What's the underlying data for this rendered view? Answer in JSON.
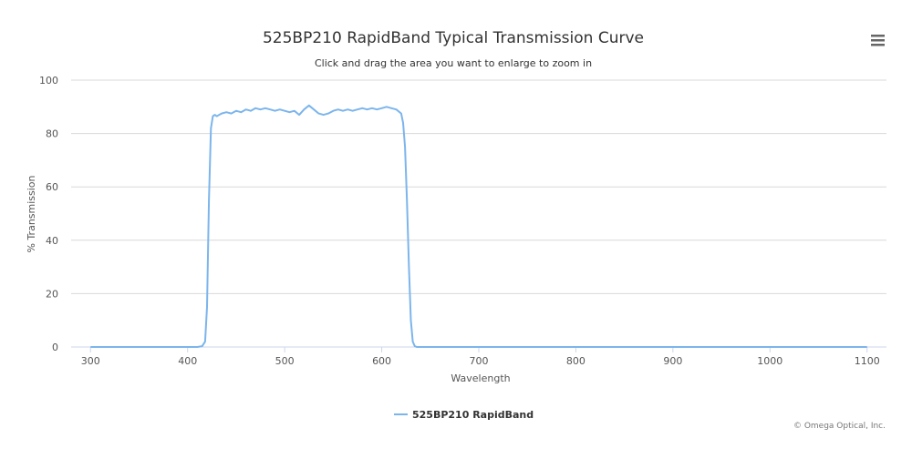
{
  "chart_data": {
    "type": "line",
    "title": "525BP210 RapidBand Typical Transmission Curve",
    "subtitle": "Click and drag the area you want to enlarge to zoom in",
    "xlabel": "Wavelength",
    "ylabel": "% Transmission",
    "xlim": [
      280,
      1120
    ],
    "ylim": [
      0,
      100
    ],
    "xticks": [
      300,
      400,
      500,
      600,
      700,
      800,
      900,
      1000,
      1100
    ],
    "yticks": [
      0,
      20,
      40,
      60,
      80,
      100
    ],
    "grid": true,
    "legend_position": "bottom-center",
    "series_color": "#7cb5ec",
    "series": [
      {
        "name": "525BP210 RapidBand",
        "x": [
          300,
          400,
          410,
          415,
          418,
          420,
          422,
          424,
          426,
          428,
          430,
          435,
          440,
          445,
          450,
          455,
          460,
          465,
          470,
          475,
          480,
          485,
          490,
          495,
          500,
          505,
          510,
          515,
          520,
          525,
          530,
          535,
          540,
          545,
          550,
          555,
          560,
          565,
          570,
          575,
          580,
          585,
          590,
          595,
          600,
          605,
          610,
          615,
          620,
          622,
          624,
          626,
          628,
          630,
          632,
          634,
          636,
          640,
          700,
          800,
          900,
          1000,
          1100
        ],
        "y": [
          0,
          0,
          0,
          0.3,
          2,
          15,
          55,
          82,
          86.5,
          87,
          86.5,
          87.5,
          88,
          87.5,
          88.5,
          88,
          89,
          88.5,
          89.5,
          89,
          89.5,
          89,
          88.5,
          89,
          88.5,
          88,
          88.5,
          87,
          89,
          90.5,
          89,
          87.5,
          87,
          87.5,
          88.5,
          89,
          88.5,
          89,
          88.5,
          89,
          89.5,
          89,
          89.5,
          89,
          89.5,
          90,
          89.5,
          89,
          87.5,
          84,
          75,
          55,
          30,
          10,
          2,
          0.3,
          0,
          0,
          0,
          0,
          0,
          0,
          0
        ]
      }
    ]
  },
  "ui": {
    "menu_icon": "hamburger-menu-icon",
    "credits": "© Omega Optical, Inc."
  }
}
